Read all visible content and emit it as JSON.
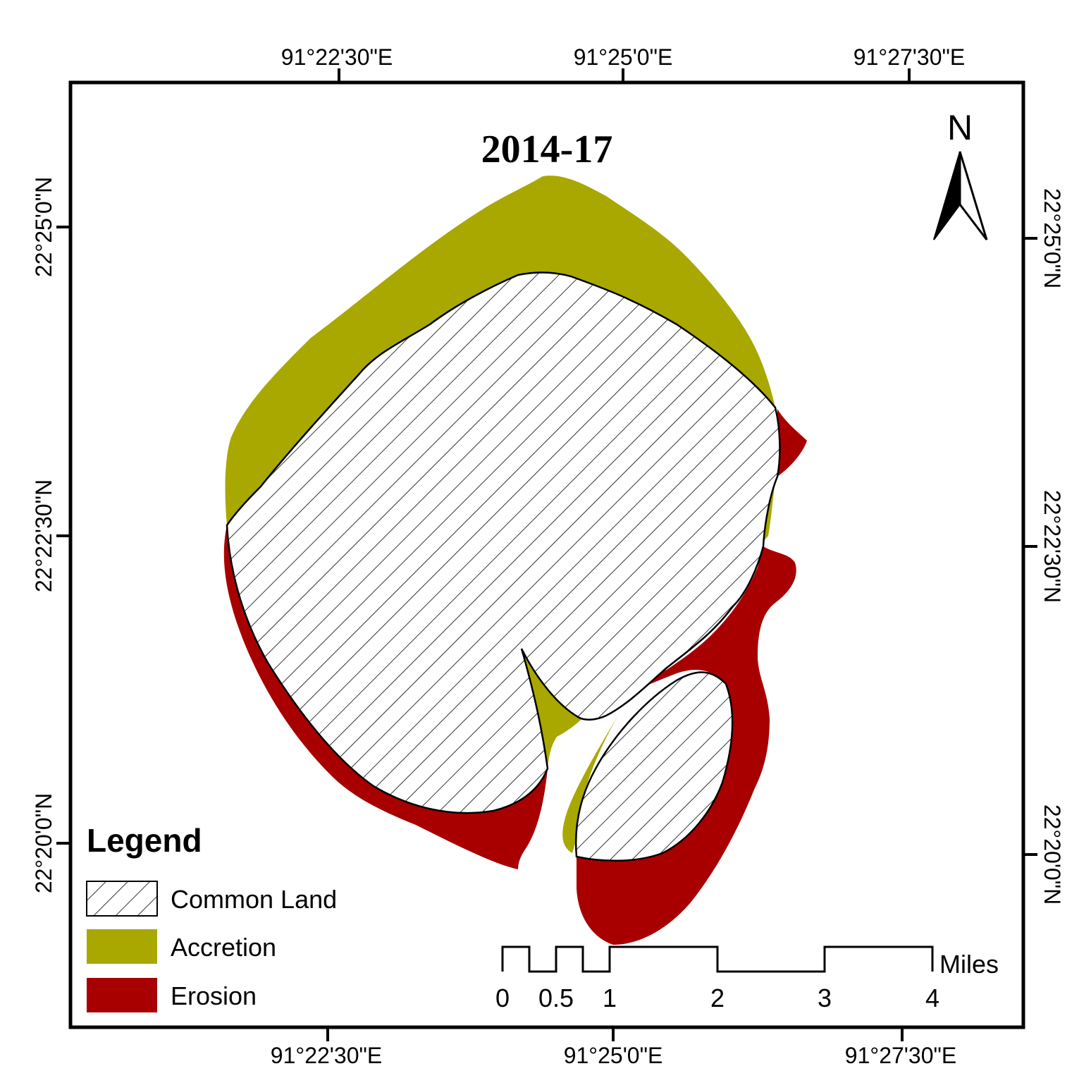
{
  "map": {
    "title": "2014-17",
    "legend": {
      "title": "Legend",
      "items": [
        {
          "label": "Common Land",
          "fill": "hatch"
        },
        {
          "label": "Accretion",
          "fill": "#a8a800"
        },
        {
          "label": "Erosion",
          "fill": "#a80000"
        }
      ]
    },
    "north_arrow": {
      "label": "N"
    },
    "scale_bar": {
      "unit": "Miles",
      "ticks": [
        "0",
        "0.5",
        "1",
        "2",
        "3",
        "4"
      ]
    },
    "graticule": {
      "top": [
        "91°22'30\"E",
        "91°25'0\"E",
        "91°27'30\"E"
      ],
      "bottom": [
        "91°22'30\"E",
        "91°25'0\"E",
        "91°27'30\"E"
      ],
      "left": [
        "22°25'0\"N",
        "22°22'30\"N",
        "22°20'0\"N"
      ],
      "right": [
        "22°25'0\"N",
        "22°22'30\"N",
        "22°20'0\"N"
      ]
    },
    "colors": {
      "accretion": "#a8a800",
      "erosion": "#a80000",
      "frame": "#000000"
    }
  }
}
